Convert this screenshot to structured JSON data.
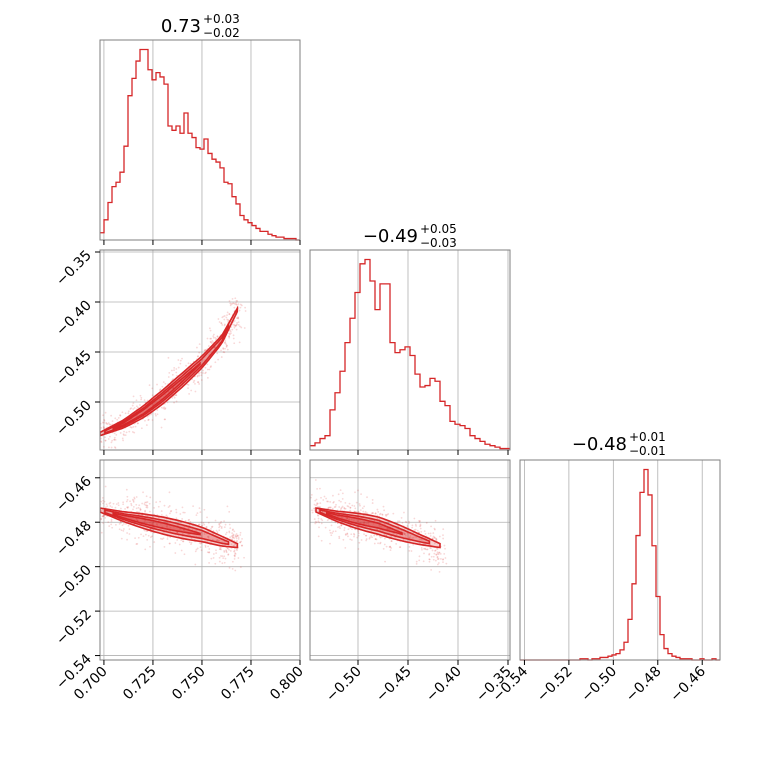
{
  "chart_data": {
    "type": "corner",
    "color": "#d62728",
    "parameters": [
      {
        "title_value": "0.73",
        "title_plus": "+0.03",
        "title_minus": "−0.02",
        "range": [
          0.698,
          0.8
        ],
        "ticks": [
          0.7,
          0.725,
          0.75,
          0.775,
          0.8
        ],
        "tick_labels": [
          "0.700",
          "0.725",
          "0.750",
          "0.775",
          "0.800"
        ],
        "hist_edges": [
          0.698,
          0.8
        ],
        "hist_counts": [
          5,
          14,
          26,
          37,
          40,
          47,
          65,
          100,
          112,
          124,
          132,
          132,
          118,
          111,
          116,
          113,
          108,
          79,
          76,
          79,
          74,
          88,
          74,
          71,
          64,
          63,
          70,
          60,
          56,
          54,
          50,
          40,
          39,
          30,
          25,
          17,
          14,
          12,
          10,
          8,
          6,
          6,
          4,
          3,
          2,
          2,
          1,
          1,
          1,
          0
        ]
      },
      {
        "title_value": "−0.49",
        "title_plus": "+0.05",
        "title_minus": "−0.03",
        "range": [
          -0.548,
          -0.348
        ],
        "ticks": [
          -0.5,
          -0.45,
          -0.4,
          -0.35
        ],
        "tick_labels": [
          "−0.50",
          "−0.45",
          "−0.40",
          "−0.35"
        ],
        "y_ticks": [
          -0.5,
          -0.45,
          -0.4,
          -0.35
        ],
        "y_tick_labels": [
          "−0.50",
          "−0.45",
          "−0.40",
          "−0.35"
        ],
        "hist_edges": [
          -0.548,
          -0.348
        ],
        "hist_counts": [
          3,
          5,
          8,
          10,
          28,
          40,
          55,
          75,
          92,
          110,
          130,
          133,
          118,
          98,
          116,
          116,
          75,
          68,
          70,
          72,
          66,
          53,
          44,
          45,
          50,
          48,
          34,
          31,
          20,
          18,
          17,
          15,
          10,
          8,
          6,
          4,
          3,
          2,
          1,
          1
        ]
      },
      {
        "title_value": "−0.48",
        "title_plus": "+0.01",
        "title_minus": "−0.01",
        "range": [
          -0.542,
          -0.452
        ],
        "ticks": [
          -0.54,
          -0.52,
          -0.5,
          -0.48,
          -0.46
        ],
        "tick_labels": [
          "−0.54",
          "−0.52",
          "−0.50",
          "−0.48",
          "−0.46"
        ],
        "y_ticks": [
          -0.54,
          -0.52,
          -0.5,
          -0.48,
          -0.46
        ],
        "y_tick_labels": [
          "−0.54",
          "−0.52",
          "−0.50",
          "−0.48",
          "−0.46"
        ],
        "hist_edges": [
          -0.542,
          -0.452
        ],
        "hist_counts": [
          0,
          0,
          0,
          0,
          0,
          0,
          0,
          0,
          0,
          0,
          0,
          0,
          0,
          0,
          0,
          1,
          1,
          0,
          1,
          1,
          2,
          2,
          3,
          4,
          5,
          8,
          14,
          32,
          60,
          98,
          132,
          150,
          130,
          90,
          50,
          20,
          9,
          5,
          3,
          2,
          1,
          1,
          1,
          0,
          0,
          1,
          0,
          0,
          1,
          0
        ]
      }
    ],
    "pairs": [
      {
        "x_param": 0,
        "y_param": 1,
        "ridge": [
          [
            0.698,
            -0.532
          ],
          [
            0.71,
            -0.522
          ],
          [
            0.72,
            -0.51
          ],
          [
            0.73,
            -0.495
          ],
          [
            0.74,
            -0.478
          ],
          [
            0.75,
            -0.46
          ],
          [
            0.76,
            -0.438
          ],
          [
            0.768,
            -0.408
          ]
        ],
        "width": 0.004
      },
      {
        "x_param": 0,
        "y_param": 2,
        "ridge": [
          [
            0.698,
            -0.4745
          ],
          [
            0.71,
            -0.4775
          ],
          [
            0.72,
            -0.4795
          ],
          [
            0.73,
            -0.4815
          ],
          [
            0.74,
            -0.4835
          ],
          [
            0.75,
            -0.4855
          ],
          [
            0.76,
            -0.4885
          ],
          [
            0.768,
            -0.4905
          ]
        ],
        "width": 0.0022
      },
      {
        "x_param": 1,
        "y_param": 2,
        "ridge": [
          [
            -0.542,
            -0.4745
          ],
          [
            -0.52,
            -0.4775
          ],
          [
            -0.5,
            -0.4795
          ],
          [
            -0.48,
            -0.4815
          ],
          [
            -0.46,
            -0.4845
          ],
          [
            -0.44,
            -0.4875
          ],
          [
            -0.418,
            -0.4905
          ]
        ],
        "width": 0.0022
      }
    ]
  }
}
